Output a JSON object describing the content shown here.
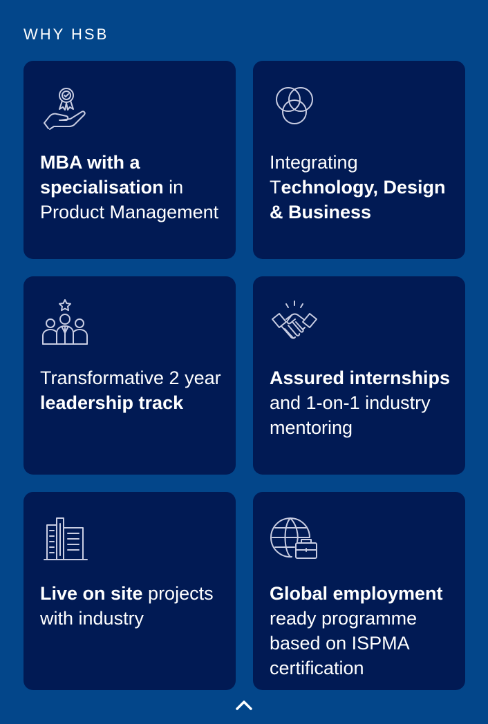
{
  "section": {
    "title": "WHY HSB"
  },
  "cards": [
    {
      "icon": "award-hand-icon",
      "bold1": "MBA with a specialisation",
      "regular1": " in Product Management",
      "bold2": "",
      "regular2": ""
    },
    {
      "icon": "venn-circles-icon",
      "bold1": "",
      "regular1": "Integrating T",
      "bold2": "echnology, Design & Business",
      "regular2": ""
    },
    {
      "icon": "team-leader-icon",
      "bold1": "",
      "regular1": "Transformative 2 year ",
      "bold2": "leadership track",
      "regular2": ""
    },
    {
      "icon": "handshake-icon",
      "bold1": "Assured internships",
      "regular1": " and 1-on-1 industry mentoring",
      "bold2": "",
      "regular2": ""
    },
    {
      "icon": "buildings-icon",
      "bold1": "Live on site",
      "regular1": " projects with industry",
      "bold2": "",
      "regular2": ""
    },
    {
      "icon": "globe-briefcase-icon",
      "bold1": "Global employment",
      "regular1": " ready programme based on ISPMA certification",
      "bold2": "",
      "regular2": ""
    }
  ],
  "scroll_up": {
    "icon": "chevron-up-icon"
  },
  "colors": {
    "background": "#03468a",
    "card": "#011a54",
    "text": "#ffffff",
    "icon_stroke": "#c9cde2"
  }
}
